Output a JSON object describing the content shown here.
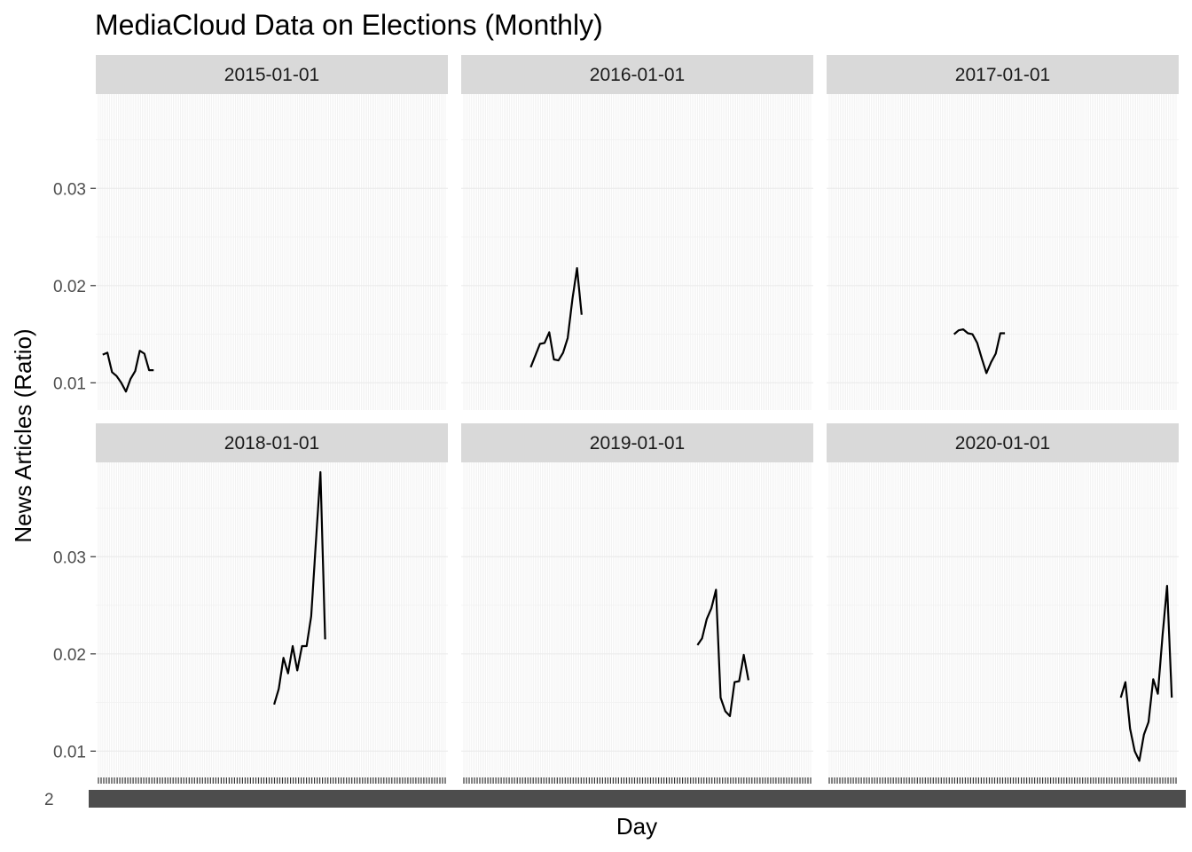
{
  "chart_data": {
    "type": "line",
    "title": "MediaCloud Data on Elections (Monthly)",
    "xlabel": "Day",
    "ylabel": "News Articles (Ratio)",
    "y_ticks": [
      0.01,
      0.02,
      0.03
    ],
    "y_tick_labels": [
      "0.01",
      "0.02",
      "0.03"
    ],
    "ylim": [
      0.0072,
      0.0397
    ],
    "grid": true,
    "x_tick_label_stub": "2",
    "facets": [
      {
        "label": "2015-01-01",
        "x": [
          3,
          5,
          7,
          9,
          11,
          13,
          15,
          17,
          19,
          21,
          23,
          25
        ],
        "y": [
          0.0129,
          0.0131,
          0.0111,
          0.0107,
          0.01,
          0.0091,
          0.0104,
          0.0112,
          0.0133,
          0.013,
          0.0113,
          0.0113
        ]
      },
      {
        "label": "2016-01-01",
        "x": [
          30,
          32,
          34,
          36,
          38,
          40,
          42,
          44,
          46,
          48,
          50,
          52
        ],
        "y": [
          0.0116,
          0.0128,
          0.014,
          0.0141,
          0.0152,
          0.0124,
          0.0123,
          0.0131,
          0.0146,
          0.0186,
          0.0218,
          0.017
        ]
      },
      {
        "label": "2017-01-01",
        "x": [
          55,
          57,
          59,
          61,
          63,
          65,
          67,
          69,
          71,
          73,
          75,
          77
        ],
        "y": [
          0.015,
          0.0154,
          0.0155,
          0.0151,
          0.015,
          0.0141,
          0.0125,
          0.011,
          0.0121,
          0.013,
          0.0151,
          0.0151
        ]
      },
      {
        "label": "2018-01-01",
        "x": [
          77,
          79,
          81,
          83,
          85,
          87,
          89,
          91,
          93,
          95,
          97,
          99
        ],
        "y": [
          0.0148,
          0.0164,
          0.0196,
          0.018,
          0.0208,
          0.0183,
          0.0208,
          0.0208,
          0.0239,
          0.0314,
          0.0387,
          0.0215
        ]
      },
      {
        "label": "2019-01-01",
        "x": [
          102,
          104,
          106,
          108,
          110,
          112,
          114,
          116,
          118,
          120,
          122,
          124
        ],
        "y": [
          0.0209,
          0.0216,
          0.0236,
          0.0247,
          0.0266,
          0.0155,
          0.0141,
          0.0136,
          0.0171,
          0.0172,
          0.0199,
          0.0173
        ]
      },
      {
        "label": "2020-01-01",
        "x": [
          127,
          129,
          131,
          133,
          135,
          137,
          139,
          141,
          143,
          145,
          147,
          149
        ],
        "y": [
          0.0155,
          0.0171,
          0.0123,
          0.01,
          0.009,
          0.0117,
          0.013,
          0.0174,
          0.0159,
          0.0218,
          0.027,
          0.0155
        ]
      }
    ],
    "xlim": [
      0,
      152
    ]
  }
}
